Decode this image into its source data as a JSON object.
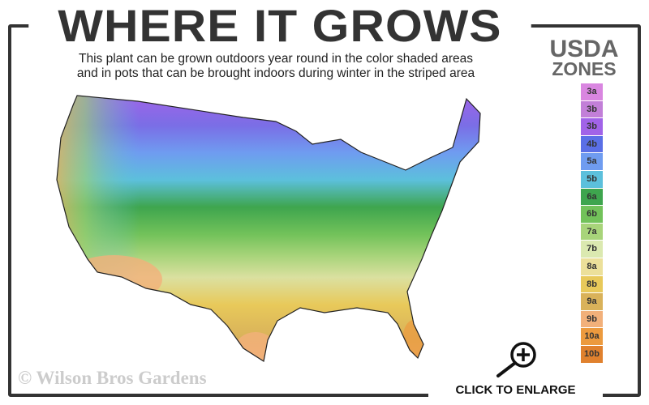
{
  "header": {
    "title": "WHERE IT GROWS",
    "subtitle_line1": "This plant can be grown outdoors year round in the color shaded areas",
    "subtitle_line2": "and in pots that can be brought indoors during winter in the striped area"
  },
  "legend": {
    "title_line1": "USDA",
    "title_line2": "ZONES",
    "zones": [
      {
        "label": "3a",
        "color": "#d986e0"
      },
      {
        "label": "3b",
        "color": "#c27fd8"
      },
      {
        "label": "3b",
        "color": "#a163e8"
      },
      {
        "label": "4b",
        "color": "#5a6fe6"
      },
      {
        "label": "5a",
        "color": "#6f9cf0"
      },
      {
        "label": "5b",
        "color": "#5cc0dc"
      },
      {
        "label": "6a",
        "color": "#3ea54e"
      },
      {
        "label": "6b",
        "color": "#72c25a"
      },
      {
        "label": "7a",
        "color": "#a8d47a"
      },
      {
        "label": "7b",
        "color": "#dbe9b0"
      },
      {
        "label": "8a",
        "color": "#ece09a"
      },
      {
        "label": "8b",
        "color": "#e8c95a"
      },
      {
        "label": "9a",
        "color": "#d9b25a"
      },
      {
        "label": "9b",
        "color": "#f2b07a"
      },
      {
        "label": "10a",
        "color": "#ec9a3e"
      },
      {
        "label": "10b",
        "color": "#e0812e"
      }
    ]
  },
  "footer": {
    "watermark": "© Wilson Bros Gardens",
    "enlarge_label": "CLICK TO ENLARGE",
    "enlarge_icon": "zoom-in-magnifier-icon"
  }
}
